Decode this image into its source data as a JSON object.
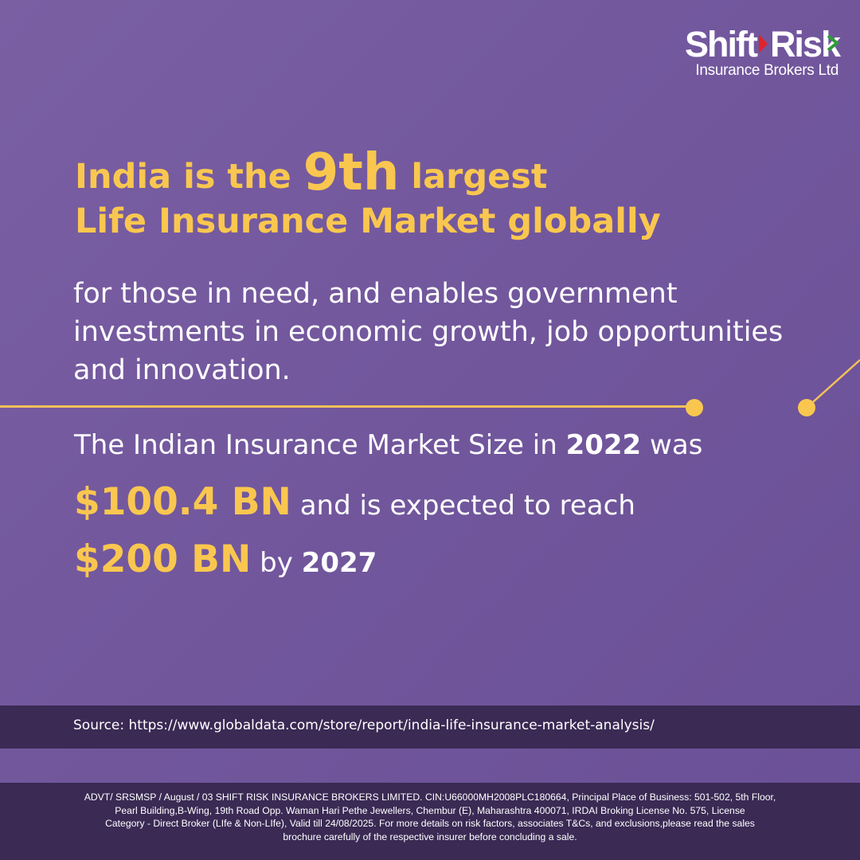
{
  "logo": {
    "part1": "Shift",
    "part2": "Risk",
    "subtitle": "Insurance Brokers Ltd",
    "arrow_color": "#e0242c",
    "tick_color": "#2e9b3a"
  },
  "headline": {
    "pre": "India is the",
    "emphasis": "9th",
    "post": "largest",
    "line2": "Life Insurance Market globally"
  },
  "body": {
    "line1": "for those in need, and enables government",
    "line2": "investments in economic growth, job opportunities",
    "line3": "and innovation."
  },
  "stats": {
    "row1_pre": "The Indian Insurance Market Size in",
    "year_2022": "2022",
    "row1_post": "was",
    "value_2022": "$100.4 BN",
    "row2_post": "and is expected to reach",
    "value_2027": "$200 BN",
    "row3_mid": "by",
    "year_2027": "2027"
  },
  "source": "Source: https://www.globaldata.com/store/report/india-life-insurance-market-analysis/",
  "disclaimer": {
    "line1": "ADVT/ SRSMSP / August / 03 SHIFT RISK INSURANCE BROKERS LIMITED. CIN:U66000MH2008PLC180664, Principal Place of Business: 501-502, 5th Floor,",
    "line2": "Pearl Building,B-Wing, 19th Road Opp. Waman Hari Pethe Jewellers, Chembur (E), Maharashtra 400071,  IRDAI Broking License No. 575, License",
    "line3": "Category - Direct Broker (LIfe & Non-LIfe), Valid till 24/08/2025. For more details on risk factors, associates T&Cs, and exclusions,please read the sales",
    "line4": "brochure carefully of the respective insurer before concluding a sale."
  },
  "colors": {
    "background": "#72579d",
    "accent": "#f9c74f",
    "band": "#3a2a54",
    "text": "#ffffff"
  }
}
